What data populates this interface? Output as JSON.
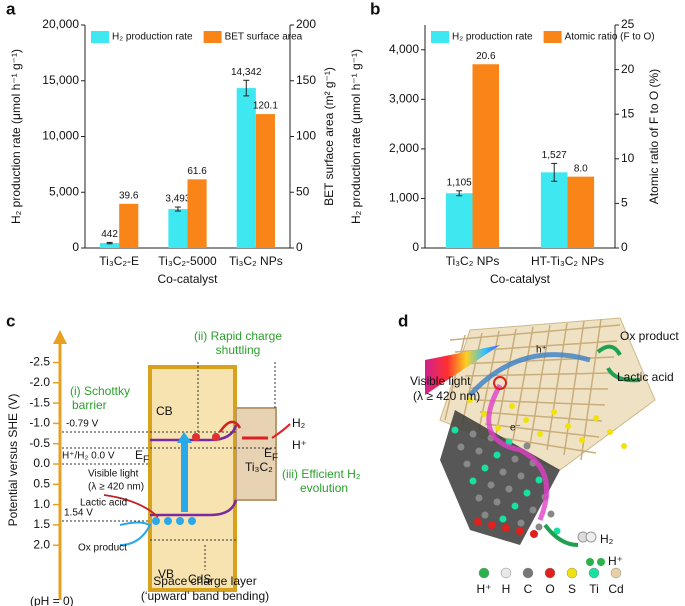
{
  "panel_labels": [
    "a",
    "b",
    "c",
    "d"
  ],
  "chart_data": [
    {
      "type": "bar",
      "xlabel": "Co-catalyst",
      "ylabel": "H₂ production rate (μmol h⁻¹ g⁻¹)",
      "y2label": "BET surface area (m² g⁻¹)",
      "categories": [
        "Ti₃C₂-E",
        "Ti₃C₂-5000",
        "Ti₃C₂ NPs"
      ],
      "series": [
        {
          "name": "H₂ production rate",
          "color": "#3ee8f0",
          "values": [
            442,
            3493,
            14342
          ],
          "errors": [
            60,
            180,
            700
          ],
          "value_labels": [
            "442",
            "3,493",
            "14,342"
          ]
        },
        {
          "name": "BET surface area",
          "color": "#f98519",
          "axis": "y2",
          "values": [
            39.6,
            61.6,
            120.1
          ]
        }
      ],
      "ylim": [
        0,
        20000
      ],
      "yticks": [
        0,
        {
          "value": 5000,
          "label": "5,000"
        },
        {
          "value": 10000,
          "label": "10,000"
        },
        {
          "value": 15000,
          "label": "15,000"
        },
        {
          "value": 20000,
          "label": "20,000"
        }
      ],
      "y2lim": [
        0,
        200
      ],
      "y2ticks": [
        0,
        50,
        100,
        150,
        200
      ],
      "legend": "upper left"
    },
    {
      "type": "bar",
      "xlabel": "Co-catalyst",
      "ylabel": "H₂ production rate (μmol h⁻¹ g⁻¹)",
      "y2label": "Atomic ratio of F to O (%)",
      "categories": [
        "Ti₃C₂ NPs",
        "HT-Ti₃C₂ NPs"
      ],
      "series": [
        {
          "name": "H₂ production rate",
          "color": "#3ee8f0",
          "values": [
            1105,
            1527
          ],
          "errors": [
            50,
            180
          ],
          "value_labels": [
            "1,105",
            "1,527"
          ]
        },
        {
          "name": "Atomic ratio (F to O)",
          "color": "#f98519",
          "axis": "y2",
          "values": [
            20.6,
            8.0
          ],
          "value_labels": [
            "20.6",
            "8.0"
          ]
        }
      ],
      "ylim": [
        0,
        4500
      ],
      "yticks": [
        0,
        {
          "value": 1000,
          "label": "1,000"
        },
        {
          "value": 2000,
          "label": "2,000"
        },
        {
          "value": 3000,
          "label": "3,000"
        },
        {
          "value": 4000,
          "label": "4,000"
        }
      ],
      "y2lim": [
        0,
        25
      ],
      "y2ticks": [
        0,
        5,
        10,
        15,
        20,
        25
      ],
      "legend": "upper left"
    }
  ],
  "panel_c": {
    "ylabel": "Potential versus SHE (V)",
    "ph": "(pH = 0)",
    "yticks": [
      {
        "value": -2.5,
        "label": "-2.5"
      },
      {
        "value": -2.0,
        "label": "-2.0"
      },
      {
        "value": -1.5,
        "label": "-1.5"
      },
      {
        "value": -1.0,
        "label": "-1.0"
      },
      {
        "value": -0.5,
        "label": "-0.5"
      },
      {
        "value": 0,
        "label": "0.0"
      },
      {
        "value": 0.5,
        "label": "0.5"
      },
      {
        "value": 1.0,
        "label": "1.0"
      },
      {
        "value": 1.5,
        "label": "1.5"
      },
      {
        "value": 2.0,
        "label": "2.0"
      }
    ],
    "schottky": [
      "(i) Schottky",
      "barrier"
    ],
    "shuttling": [
      "(ii) Rapid charge",
      "shuttling"
    ],
    "evolution": [
      "(iii) Efficient H₂",
      "evolution"
    ],
    "cb": "CB",
    "vb": "VB",
    "cds": "CdS",
    "ef": "E",
    "ef_sub": "F",
    "ti3c2": "Ti₃C₂",
    "h2": "H₂",
    "hplus": "H⁺",
    "cb_level": "-0.79 V",
    "h_level": "H⁺/H₂ 0.0 V",
    "vb_level": "1.54 V",
    "light": [
      "Visible light",
      "(λ ≥ 420 nm)"
    ],
    "lactic": "Lactic acid",
    "ox": "Ox product",
    "space": [
      "Space charge layer",
      "(‘upward’ band bending)"
    ]
  },
  "panel_d": {
    "light": [
      "Visible light",
      "(λ ≥ 420 nm)"
    ],
    "ox": "Ox product",
    "lactic": "Lactic acid",
    "h2": "H₂",
    "hplus": "H⁺",
    "eminus": "e⁻",
    "hole": "h⁺",
    "legend": [
      {
        "label": "H⁺",
        "color": "#2bb24c"
      },
      {
        "label": "H",
        "color": "#e8e8e8"
      },
      {
        "label": "C",
        "color": "#777777"
      },
      {
        "label": "O",
        "color": "#e0201c"
      },
      {
        "label": "S",
        "color": "#f2e20c"
      },
      {
        "label": "Ti",
        "color": "#18e0a0"
      },
      {
        "label": "Cd",
        "color": "#e6cfa4"
      }
    ]
  }
}
